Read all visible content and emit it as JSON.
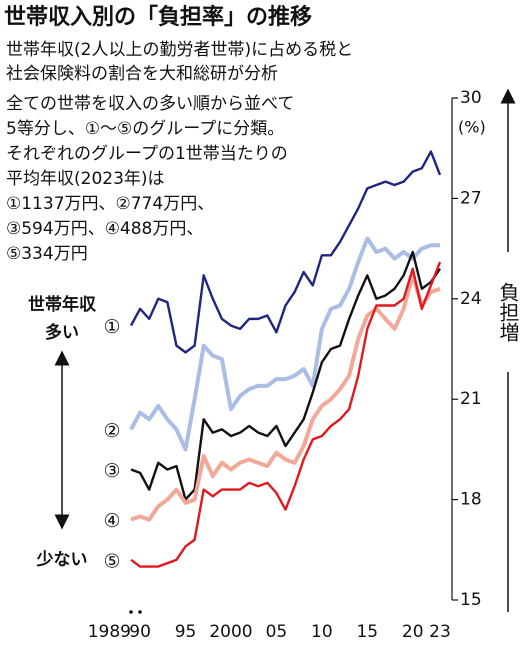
{
  "chart_data": {
    "type": "line",
    "title": "世帯収入別の「負担率」の推移",
    "subtitle": [
      "世帯年収(2人以上の勤労者世帯)に占める税と",
      "社会保険料の割合を大和総研が分析"
    ],
    "notes": [
      "全ての世帯を収入の多い順から並べて",
      "5等分し、①～⑤のグループに分類。",
      "それぞれのグループの1世帯当たりの",
      "平均年収(2023年)は",
      "①1137万円、②774万円、",
      "③594万円、④488万円、",
      "⑤334万円"
    ],
    "y_unit": "(%)",
    "left_labels": {
      "top": [
        "世帯年収",
        "多い"
      ],
      "bottom": "少ない"
    },
    "right_label": "負担増",
    "x": [
      1989,
      1990,
      1991,
      1992,
      1993,
      1994,
      1995,
      1996,
      1997,
      1998,
      1999,
      2000,
      2001,
      2002,
      2003,
      2004,
      2005,
      2006,
      2007,
      2008,
      2009,
      2010,
      2011,
      2012,
      2013,
      2014,
      2015,
      2016,
      2017,
      2018,
      2019,
      2020,
      2021,
      2022,
      2023
    ],
    "xlim": [
      1989,
      2023
    ],
    "xticks": [
      1989,
      {
        "value": 1990,
        "label": "90"
      },
      {
        "value": 1995,
        "label": "95"
      },
      2000,
      {
        "value": 2005,
        "label": "05"
      },
      {
        "value": 2010,
        "label": "10"
      },
      {
        "value": 2015,
        "label": "15"
      },
      {
        "value": 2020,
        "label": "20"
      },
      {
        "value": 2023,
        "label": "23"
      }
    ],
    "ylim": [
      15,
      30
    ],
    "yticks": [
      15,
      18,
      21,
      24,
      27,
      30
    ],
    "series": [
      {
        "name": "①",
        "color": "#1f2580",
        "values": [
          23.2,
          23.7,
          23.4,
          24.0,
          23.9,
          22.6,
          22.4,
          22.6,
          24.7,
          24.0,
          23.4,
          23.2,
          23.1,
          23.4,
          23.4,
          23.5,
          23.0,
          23.8,
          24.2,
          24.8,
          24.4,
          25.3,
          25.3,
          25.7,
          26.2,
          26.7,
          27.3,
          27.4,
          27.5,
          27.4,
          27.5,
          27.8,
          27.9,
          28.4,
          27.7
        ]
      },
      {
        "name": "②",
        "color": "#a9bde6",
        "values": [
          20.1,
          20.6,
          20.4,
          20.8,
          20.4,
          20.1,
          19.5,
          21.0,
          22.6,
          22.3,
          22.2,
          20.7,
          21.1,
          21.3,
          21.4,
          21.4,
          21.6,
          21.6,
          21.7,
          21.9,
          21.4,
          23.1,
          23.7,
          23.8,
          24.3,
          25.1,
          25.8,
          25.4,
          25.5,
          25.2,
          25.4,
          25.2,
          25.5,
          25.6,
          25.6
        ]
      },
      {
        "name": "③",
        "color": "#111111",
        "values": [
          18.9,
          18.8,
          18.3,
          19.1,
          18.9,
          19.0,
          18.0,
          18.3,
          20.4,
          20.0,
          20.1,
          19.9,
          20.0,
          20.2,
          20.0,
          19.9,
          20.2,
          19.6,
          20.0,
          20.4,
          21.2,
          22.1,
          22.5,
          22.6,
          23.4,
          24.1,
          24.7,
          24.0,
          24.1,
          24.3,
          24.7,
          25.4,
          24.3,
          24.5,
          24.9
        ]
      },
      {
        "name": "④",
        "color": "#f2a898",
        "values": [
          17.4,
          17.5,
          17.4,
          17.8,
          18.0,
          18.3,
          17.9,
          18.0,
          19.3,
          18.7,
          19.1,
          18.9,
          19.1,
          19.2,
          19.1,
          19.0,
          19.4,
          19.2,
          19.1,
          19.6,
          20.4,
          20.8,
          21.0,
          21.3,
          21.7,
          22.8,
          23.5,
          23.7,
          23.4,
          23.1,
          23.7,
          24.7,
          23.8,
          24.2,
          24.3
        ]
      },
      {
        "name": "⑤",
        "color": "#e0191e",
        "values": [
          16.2,
          16.0,
          16.0,
          16.0,
          16.1,
          16.2,
          16.6,
          16.8,
          18.3,
          18.1,
          18.3,
          18.3,
          18.3,
          18.5,
          18.4,
          18.5,
          18.2,
          17.7,
          18.4,
          19.2,
          19.8,
          19.9,
          20.2,
          20.4,
          20.7,
          21.7,
          23.1,
          23.8,
          23.8,
          23.8,
          24.0,
          24.9,
          23.7,
          24.4,
          25.1
        ]
      }
    ]
  }
}
